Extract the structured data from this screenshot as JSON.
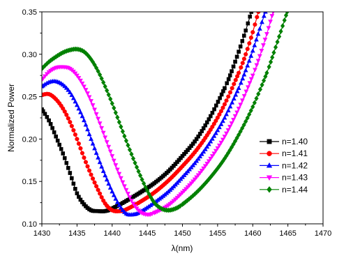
{
  "chart_data": {
    "type": "line",
    "xlabel": "λ(nm)",
    "ylabel": "Normalized Power",
    "xlim": [
      1430,
      1470
    ],
    "ylim": [
      0.1,
      0.35
    ],
    "xticks": [
      "1430",
      "1435",
      "1440",
      "1445",
      "1450",
      "1455",
      "1460",
      "1465",
      "1470"
    ],
    "yticks": [
      "0.10",
      "0.15",
      "0.20",
      "0.25",
      "0.30",
      "0.35"
    ],
    "legend_position": "right",
    "series": [
      {
        "name": "n=1.40",
        "color": "#000000",
        "marker": "square",
        "points": [
          [
            1430,
            0.235
          ],
          [
            1431,
            0.222
          ],
          [
            1432,
            0.203
          ],
          [
            1433,
            0.183
          ],
          [
            1434,
            0.16
          ],
          [
            1435,
            0.136
          ],
          [
            1436,
            0.123
          ],
          [
            1437,
            0.116
          ],
          [
            1438,
            0.115
          ],
          [
            1439,
            0.115
          ],
          [
            1440,
            0.118
          ],
          [
            1442,
            0.127
          ],
          [
            1444,
            0.137
          ],
          [
            1446,
            0.148
          ],
          [
            1448,
            0.162
          ],
          [
            1450,
            0.18
          ],
          [
            1452,
            0.2
          ],
          [
            1454,
            0.227
          ],
          [
            1456,
            0.26
          ],
          [
            1457,
            0.28
          ],
          [
            1458,
            0.303
          ],
          [
            1459,
            0.328
          ],
          [
            1459.8,
            0.35
          ]
        ]
      },
      {
        "name": "n=1.41",
        "color": "#ff0000",
        "marker": "circle",
        "points": [
          [
            1430,
            0.252
          ],
          [
            1431,
            0.253
          ],
          [
            1432,
            0.247
          ],
          [
            1433,
            0.236
          ],
          [
            1434,
            0.22
          ],
          [
            1435,
            0.2
          ],
          [
            1436,
            0.178
          ],
          [
            1437,
            0.158
          ],
          [
            1438,
            0.14
          ],
          [
            1439,
            0.124
          ],
          [
            1440,
            0.116
          ],
          [
            1441,
            0.115
          ],
          [
            1442,
            0.117
          ],
          [
            1444,
            0.126
          ],
          [
            1446,
            0.137
          ],
          [
            1448,
            0.151
          ],
          [
            1450,
            0.168
          ],
          [
            1452,
            0.187
          ],
          [
            1454,
            0.211
          ],
          [
            1456,
            0.241
          ],
          [
            1458,
            0.278
          ],
          [
            1459,
            0.3
          ],
          [
            1460,
            0.326
          ],
          [
            1460.8,
            0.35
          ]
        ]
      },
      {
        "name": "n=1.42",
        "color": "#0000ff",
        "marker": "triangle-up",
        "points": [
          [
            1430,
            0.262
          ],
          [
            1431,
            0.267
          ],
          [
            1432,
            0.268
          ],
          [
            1433,
            0.264
          ],
          [
            1434,
            0.255
          ],
          [
            1435,
            0.24
          ],
          [
            1436,
            0.222
          ],
          [
            1437,
            0.2
          ],
          [
            1438,
            0.178
          ],
          [
            1439,
            0.157
          ],
          [
            1440,
            0.138
          ],
          [
            1441,
            0.122
          ],
          [
            1442,
            0.112
          ],
          [
            1443,
            0.111
          ],
          [
            1444,
            0.114
          ],
          [
            1446,
            0.125
          ],
          [
            1448,
            0.138
          ],
          [
            1450,
            0.155
          ],
          [
            1452,
            0.174
          ],
          [
            1454,
            0.197
          ],
          [
            1456,
            0.225
          ],
          [
            1458,
            0.26
          ],
          [
            1459,
            0.281
          ],
          [
            1460,
            0.304
          ],
          [
            1461,
            0.33
          ],
          [
            1461.8,
            0.35
          ]
        ]
      },
      {
        "name": "n=1.43",
        "color": "#ff00ff",
        "marker": "triangle-down",
        "points": [
          [
            1430,
            0.27
          ],
          [
            1431,
            0.279
          ],
          [
            1432,
            0.284
          ],
          [
            1433,
            0.285
          ],
          [
            1434,
            0.283
          ],
          [
            1435,
            0.275
          ],
          [
            1436,
            0.262
          ],
          [
            1437,
            0.245
          ],
          [
            1438,
            0.224
          ],
          [
            1439,
            0.202
          ],
          [
            1440,
            0.18
          ],
          [
            1441,
            0.159
          ],
          [
            1442,
            0.14
          ],
          [
            1443,
            0.124
          ],
          [
            1444,
            0.114
          ],
          [
            1445,
            0.111
          ],
          [
            1446,
            0.113
          ],
          [
            1448,
            0.122
          ],
          [
            1450,
            0.137
          ],
          [
            1452,
            0.155
          ],
          [
            1454,
            0.177
          ],
          [
            1456,
            0.203
          ],
          [
            1458,
            0.236
          ],
          [
            1460,
            0.275
          ],
          [
            1461,
            0.298
          ],
          [
            1462,
            0.324
          ],
          [
            1462.9,
            0.35
          ]
        ]
      },
      {
        "name": "n=1.44",
        "color": "#008000",
        "marker": "diamond",
        "points": [
          [
            1430,
            0.283
          ],
          [
            1431,
            0.291
          ],
          [
            1432,
            0.297
          ],
          [
            1433,
            0.302
          ],
          [
            1434,
            0.305
          ],
          [
            1435,
            0.306
          ],
          [
            1436,
            0.303
          ],
          [
            1437,
            0.294
          ],
          [
            1438,
            0.28
          ],
          [
            1439,
            0.262
          ],
          [
            1440,
            0.242
          ],
          [
            1441,
            0.22
          ],
          [
            1442,
            0.198
          ],
          [
            1443,
            0.177
          ],
          [
            1444,
            0.157
          ],
          [
            1445,
            0.139
          ],
          [
            1446,
            0.125
          ],
          [
            1447,
            0.118
          ],
          [
            1448,
            0.116
          ],
          [
            1449,
            0.118
          ],
          [
            1450,
            0.123
          ],
          [
            1452,
            0.137
          ],
          [
            1454,
            0.155
          ],
          [
            1456,
            0.177
          ],
          [
            1458,
            0.205
          ],
          [
            1460,
            0.238
          ],
          [
            1462,
            0.278
          ],
          [
            1463,
            0.302
          ],
          [
            1464,
            0.327
          ],
          [
            1464.9,
            0.35
          ]
        ]
      }
    ]
  }
}
